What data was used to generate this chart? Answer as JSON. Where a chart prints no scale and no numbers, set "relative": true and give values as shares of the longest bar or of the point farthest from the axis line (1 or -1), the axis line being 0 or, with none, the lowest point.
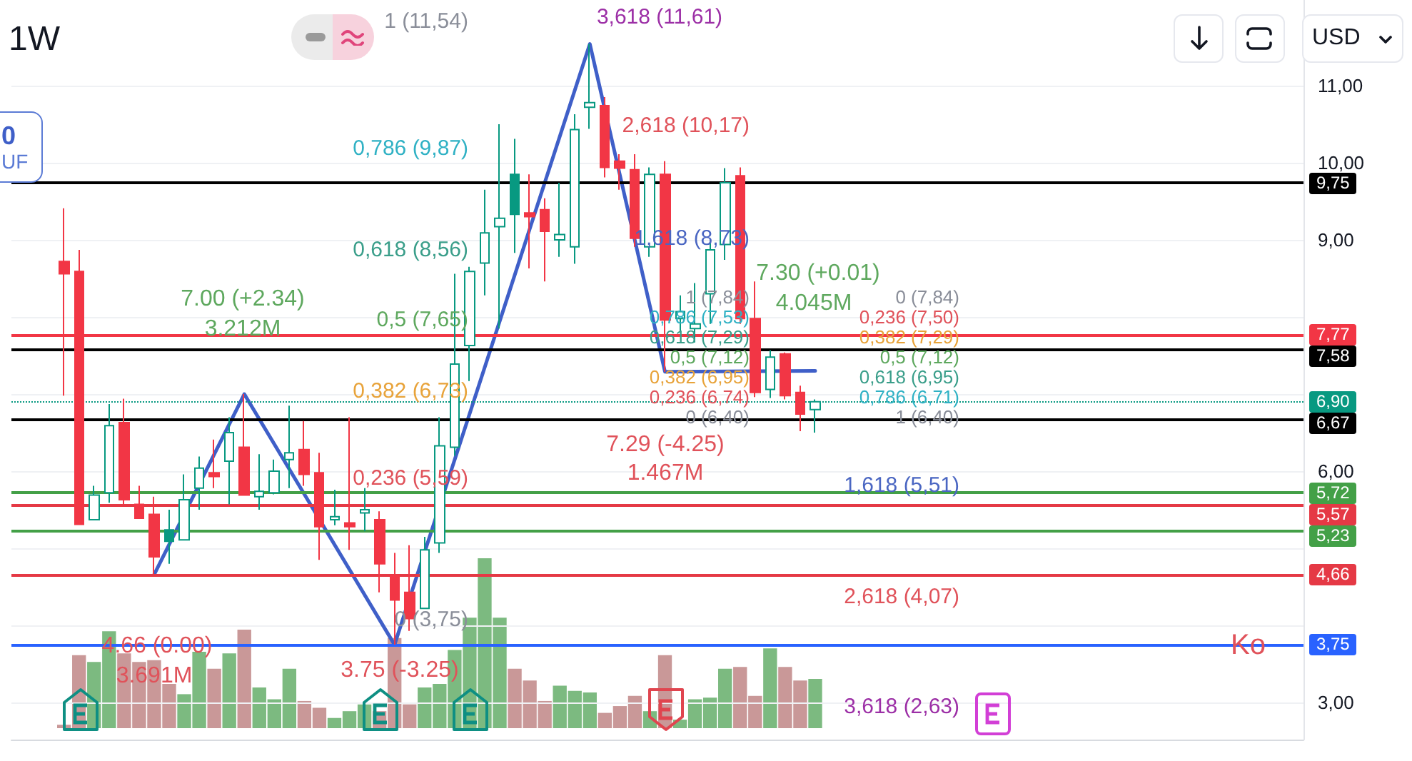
{
  "chart_data": [
    {
      "type": "candlestick",
      "title": "1W",
      "categories": [
        null,
        null,
        null,
        null,
        null,
        null,
        null,
        null,
        null,
        null,
        null,
        null,
        null,
        null,
        null,
        null,
        null,
        null,
        null,
        null,
        null,
        null,
        null,
        null,
        null,
        null,
        null,
        null,
        null,
        null,
        null,
        null,
        null,
        null,
        null,
        null,
        null,
        null,
        null,
        null,
        null,
        null,
        null,
        null,
        null,
        null,
        null,
        null,
        null,
        null,
        null,
        null,
        null,
        null,
        null,
        null,
        null,
        null,
        null,
        null,
        null,
        null,
        null,
        null,
        null,
        null,
        null,
        null,
        null,
        null,
        null,
        null,
        null,
        null,
        null,
        null,
        null,
        null,
        null,
        null,
        null,
        null,
        null,
        null,
        null,
        null
      ],
      "ohlc": [
        null,
        null,
        null,
        [
          8.72,
          9.41,
          6.98,
          8.56
        ],
        [
          8.59,
          8.87,
          5.31,
          5.31
        ],
        [
          5.37,
          5.81,
          5.37,
          5.69
        ],
        [
          5.72,
          6.87,
          5.59,
          6.59
        ],
        [
          6.63,
          6.94,
          5.57,
          5.63
        ],
        [
          5.57,
          5.81,
          5.39,
          5.39
        ],
        [
          5.44,
          5.67,
          4.66,
          4.89
        ],
        [
          5.24,
          5.5,
          4.8,
          5.09
        ],
        [
          5.11,
          5.96,
          5.11,
          5.63
        ],
        [
          5.78,
          6.19,
          5.5,
          6.04
        ],
        [
          5.98,
          6.41,
          5.78,
          5.93
        ],
        [
          6.13,
          6.7,
          5.57,
          6.5
        ],
        [
          6.31,
          7.0,
          5.69,
          5.69
        ],
        [
          5.67,
          6.22,
          5.5,
          5.74
        ],
        [
          5.72,
          6.15,
          5.7,
          6.0
        ],
        [
          6.15,
          6.85,
          5.78,
          6.24
        ],
        [
          6.28,
          6.65,
          5.81,
          5.96
        ],
        [
          5.98,
          6.24,
          4.85,
          5.28
        ],
        [
          5.37,
          5.76,
          5.3,
          5.41
        ],
        [
          5.33,
          6.7,
          4.98,
          5.28
        ],
        [
          5.46,
          5.78,
          5.22,
          5.5
        ],
        [
          5.37,
          5.48,
          4.43,
          4.8
        ],
        [
          4.65,
          4.94,
          3.75,
          4.33
        ],
        [
          4.43,
          5.04,
          3.93,
          4.09
        ],
        [
          4.22,
          5.15,
          4.22,
          4.98
        ],
        [
          5.07,
          6.7,
          4.94,
          6.33
        ],
        [
          6.31,
          8.56,
          6.2,
          7.39
        ],
        [
          7.63,
          8.65,
          7.17,
          8.59
        ],
        [
          8.7,
          9.65,
          8.28,
          9.09
        ],
        [
          9.17,
          10.5,
          7.85,
          9.28
        ],
        [
          9.85,
          10.31,
          8.83,
          9.33
        ],
        [
          9.35,
          9.85,
          8.63,
          9.3
        ],
        [
          9.39,
          9.54,
          8.46,
          9.11
        ],
        [
          9.0,
          9.74,
          8.78,
          9.07
        ],
        [
          8.91,
          10.63,
          8.69,
          10.43
        ],
        [
          10.72,
          11.54,
          10.44,
          10.78
        ],
        [
          10.74,
          10.85,
          9.81,
          9.94
        ],
        [
          10.02,
          10.11,
          9.65,
          9.93
        ],
        [
          9.91,
          10.11,
          8.91,
          9.02
        ],
        [
          8.91,
          9.94,
          8.78,
          9.85
        ],
        [
          9.85,
          10.02,
          7.29,
          7.96
        ],
        [
          7.98,
          8.28,
          7.8,
          8.07
        ],
        [
          7.85,
          8.44,
          7.67,
          7.91
        ],
        [
          8.3,
          9.0,
          7.91,
          8.87
        ],
        [
          8.94,
          9.93,
          8.74,
          9.74
        ],
        [
          9.83,
          9.94,
          7.91,
          7.98
        ],
        [
          7.98,
          8.46,
          6.96,
          7.02
        ],
        [
          7.06,
          7.57,
          6.95,
          7.48
        ],
        [
          7.52,
          7.54,
          6.93,
          6.98
        ],
        [
          7.02,
          7.11,
          6.52,
          6.74
        ],
        [
          6.8,
          6.93,
          6.5,
          6.9
        ],
        null,
        null,
        null,
        null,
        null,
        null,
        null,
        null,
        null,
        null,
        null,
        null,
        null,
        null,
        null,
        null,
        null,
        null,
        null,
        null,
        null,
        null,
        null,
        null,
        null,
        null,
        null,
        null,
        null,
        null,
        null,
        null
      ],
      "colors": [
        null,
        null,
        null,
        "#f23645",
        "#f23645",
        "#089981",
        "#089981",
        "#f23645",
        "#f23645",
        "#f23645",
        "#089981",
        "#089981",
        "#089981",
        "#f23645",
        "#089981",
        "#f23645",
        "#089981",
        "#089981",
        "#089981",
        "#f23645",
        "#f23645",
        "#089981",
        "#f23645",
        "#089981",
        "#f23645",
        "#f23645",
        "#f23645",
        "#089981",
        "#089981",
        "#089981",
        "#089981",
        "#089981",
        "#089981",
        "#089981",
        "#f23645",
        "#f23645",
        "#089981",
        "#089981",
        "#089981",
        "#f23645",
        "#f23645",
        "#f23645",
        "#089981",
        "#f23645",
        "#089981",
        "#089981",
        "#089981",
        "#089981",
        "#f23645",
        "#f23645",
        "#089981",
        "#f23645",
        "#f23645",
        "#089981",
        null,
        null,
        null,
        null,
        null,
        null,
        null,
        null,
        null,
        null,
        null,
        null,
        null,
        null,
        null,
        null,
        null,
        null,
        null,
        null,
        null,
        null,
        null,
        null,
        null,
        null,
        null,
        null,
        null,
        null,
        null,
        null
      ],
      "series": [
        {
          "type": "line",
          "color": "#3f5fc8",
          "values": [
            null,
            null,
            null,
            null,
            null,
            null,
            null,
            null,
            null,
            4.66,
            null,
            null,
            null,
            null,
            null,
            7.0,
            null,
            null,
            null,
            null,
            null,
            null,
            null,
            null,
            null,
            3.75,
            null,
            null,
            null,
            null,
            null,
            null,
            null,
            null,
            null,
            null,
            null,
            null,
            11.54,
            null,
            null,
            null,
            null,
            7.29,
            null,
            null,
            null,
            null,
            null,
            null,
            null,
            null,
            null,
            7.3,
            null,
            null,
            null,
            null,
            null,
            null,
            null,
            null,
            null,
            null,
            null,
            null,
            null,
            null,
            null,
            null,
            null,
            null,
            null,
            null,
            null,
            null,
            null,
            null,
            null,
            null,
            null,
            null,
            null,
            null,
            null,
            null
          ]
        }
      ],
      "ylim": [
        2.52,
        12.11
      ],
      "yticks": [
        {
          "value": 3,
          "label": "3,00"
        },
        {
          "value": 4,
          "label": null
        },
        {
          "value": 5,
          "label": null
        },
        {
          "value": 6,
          "label": "6,00"
        },
        {
          "value": 7,
          "label": null
        },
        {
          "value": 8,
          "label": null
        },
        {
          "value": 9,
          "label": "9,00"
        },
        {
          "value": 10,
          "label": "10,00"
        },
        {
          "value": 11,
          "label": "11,00"
        }
      ],
      "tick_labels": "y",
      "grid": "y",
      "ref_lines": [
        {
          "axis": "y",
          "value": 9.75,
          "label": "9,75",
          "color": "#000000"
        },
        {
          "axis": "y",
          "value": 7.77,
          "label": "7,77",
          "color": "#f23645"
        },
        {
          "axis": "y",
          "value": 7.58,
          "label": "7,58",
          "color": "#000000"
        },
        {
          "axis": "y",
          "value": 6.9,
          "label": "6,90",
          "color": "#089981",
          "line_style": "dotted"
        },
        {
          "axis": "y",
          "value": 6.67,
          "label": "6,67",
          "color": "#000000"
        },
        {
          "axis": "y",
          "value": 5.72,
          "label": "5,72",
          "color": "#43a047"
        },
        {
          "axis": "y",
          "value": 5.57,
          "label": "5,57",
          "color": "#e53945"
        },
        {
          "axis": "y",
          "value": 5.23,
          "label": "5,23",
          "color": "#43a047"
        },
        {
          "axis": "y",
          "value": 4.66,
          "label": "4,66",
          "color": "#e53945"
        },
        {
          "axis": "y",
          "value": 3.75,
          "label": "3,75",
          "color": "#2962ff"
        }
      ],
      "annotations": [
        "1 (11,54)",
        "0,786 (9,87)",
        "0,618 (8,56)",
        "0,5 (7,65)",
        "0,382 (6,73)",
        "0,236 (5,59)",
        "0 (3,75)",
        "3,618 (11,61)",
        "2,618 (10,17)",
        "1,618 (8,73)",
        "1 (7,84)",
        "0,786 (7,53)",
        "0,618 (7,29)",
        "0,5 (7,12)",
        "0,382 (6,95)",
        "0,236 (6,74)",
        "0 (6,40)",
        "0 (7,84)",
        "0,236 (7,50)",
        "0,382 (7,29)",
        "0,5 (7,12)",
        "0,618 (6,95)",
        "0,786 (6,71)",
        "1 (6,40)",
        "1,618 (5,51)",
        "2,618 (4,07)",
        "3,618 (2,63)",
        {
          "text": "Ko",
          "y": 3.75
        },
        "7.00 (+2.34)",
        "3.212M",
        "4.66 (0.00)",
        "3.691M",
        "7.29 (-4.25)",
        "1.467M",
        "7.30 (+0.01)",
        "4.045M",
        "3.75 (-3.25)",
        "0",
        "UF",
        "USD"
      ]
    },
    {
      "type": "bar",
      "relative": true,
      "categories": [
        null,
        null,
        null,
        null,
        null,
        null,
        null,
        null,
        null,
        null,
        null,
        null,
        null,
        null,
        null,
        null,
        null,
        null,
        null,
        null,
        null,
        null,
        null,
        null,
        null,
        null,
        null,
        null,
        null,
        null,
        null,
        null,
        null,
        null,
        null,
        null,
        null,
        null,
        null,
        null,
        null,
        null,
        null,
        null,
        null,
        null,
        null,
        null,
        null,
        null,
        null,
        null,
        null,
        null,
        null,
        null,
        null,
        null,
        null,
        null,
        null,
        null,
        null,
        null,
        null,
        null,
        null,
        null,
        null,
        null,
        null,
        null,
        null,
        null,
        null,
        null,
        null,
        null,
        null,
        null,
        null,
        null,
        null,
        null,
        null,
        null
      ],
      "values": [
        null,
        null,
        null,
        0.02,
        0.43,
        0.39,
        0.57,
        0.44,
        0.39,
        0.4,
        0.26,
        0.2,
        0.45,
        0.35,
        0.44,
        0.58,
        0.24,
        0.17,
        0.35,
        0.16,
        0.12,
        0.06,
        0.1,
        0.14,
        0.1,
        0.53,
        0.14,
        0.24,
        0.26,
        0.46,
        0.65,
        1,
        0.65,
        0.35,
        0.28,
        0.16,
        0.25,
        0.22,
        0.21,
        0.09,
        0.13,
        0.19,
        0.1,
        0.43,
        0.05,
        0.17,
        0.18,
        0.35,
        0.36,
        0.19,
        0.47,
        0.36,
        0.28,
        0.29,
        null,
        null,
        null,
        null,
        null,
        null,
        null,
        null,
        null,
        null,
        null,
        null,
        null,
        null,
        null,
        null,
        null,
        null,
        null,
        null,
        null,
        null,
        null,
        null,
        null,
        null,
        null,
        null,
        null,
        null,
        null,
        null
      ],
      "colors": [
        null,
        null,
        null,
        "#c99898",
        "#c99898",
        "#7cba80",
        "#7cba80",
        "#c99898",
        "#c99898",
        "#c99898",
        "#c99898",
        "#7cba80",
        "#7cba80",
        "#c99898",
        "#7cba80",
        "#c99898",
        "#7cba80",
        "#7cba80",
        "#7cba80",
        "#c99898",
        "#c99898",
        "#7cba80",
        "#7cba80",
        "#7cba80",
        "#c99898",
        "#c99898",
        "#c99898",
        "#7cba80",
        "#7cba80",
        "#7cba80",
        "#7cba80",
        "#7cba80",
        "#7cba80",
        "#c99898",
        "#c99898",
        "#c99898",
        "#7cba80",
        "#7cba80",
        "#7cba80",
        "#c99898",
        "#c99898",
        "#c99898",
        "#7cba80",
        "#c99898",
        "#7cba80",
        "#7cba80",
        "#7cba80",
        "#7cba80",
        "#c99898",
        "#c99898",
        "#7cba80",
        "#c99898",
        "#c99898",
        "#7cba80",
        null,
        null,
        null,
        null,
        null,
        null,
        null,
        null,
        null,
        null,
        null,
        null,
        null,
        null,
        null,
        null,
        null,
        null,
        null,
        null,
        null,
        null,
        null,
        null,
        null,
        null,
        null,
        null,
        null,
        null,
        null,
        null
      ]
    }
  ]
}
